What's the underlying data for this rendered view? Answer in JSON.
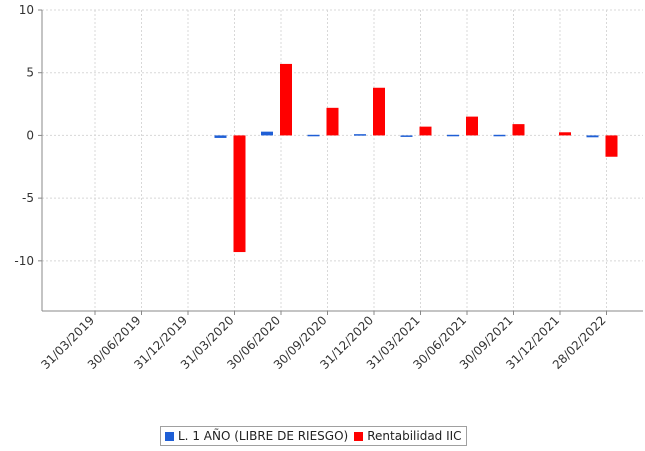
{
  "chart_data": {
    "type": "bar",
    "title": "",
    "xlabel": "",
    "ylabel": "",
    "ylim": [
      -14,
      10
    ],
    "yticks": [
      10,
      5,
      0,
      -5,
      -10
    ],
    "grid": true,
    "legend_position": "bottom",
    "categories": [
      "31/03/2019",
      "30/06/2019",
      "31/12/2019",
      "31/03/2020",
      "30/06/2020",
      "30/09/2020",
      "31/12/2020",
      "31/03/2021",
      "30/06/2021",
      "30/09/2021",
      "31/12/2021",
      "28/02/2022"
    ],
    "series": [
      {
        "name": "L. 1 AÑO (LIBRE DE RIESGO)",
        "color": "#1f5fd6",
        "values": [
          null,
          null,
          null,
          -0.2,
          0.3,
          0.05,
          0.1,
          -0.1,
          0.05,
          0.05,
          null,
          -0.15
        ]
      },
      {
        "name": "Rentabilidad IIC",
        "color": "#ff0000",
        "values": [
          null,
          null,
          null,
          -9.3,
          5.7,
          2.2,
          3.8,
          0.7,
          1.5,
          0.9,
          0.25,
          -1.7
        ]
      }
    ]
  }
}
